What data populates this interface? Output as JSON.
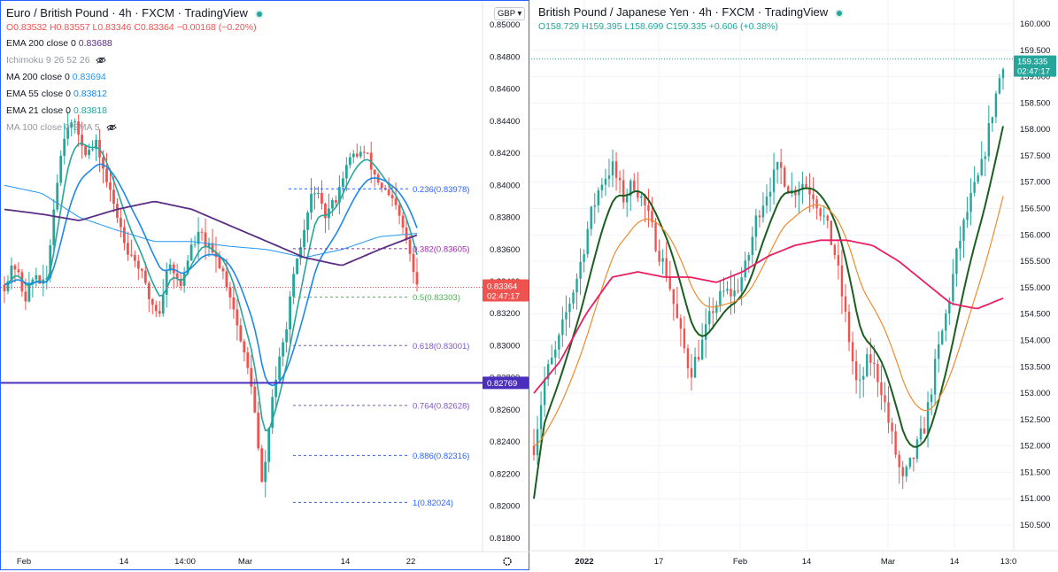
{
  "left": {
    "title": "Euro / British Pound · 4h · FXCM · TradingView",
    "ohlc": {
      "o": "O0.83532",
      "h": "H0.83557",
      "l": "L0.83346",
      "c": "C0.83364",
      "chg": "−0.00168 (−0.20%)"
    },
    "currency": "GBP",
    "indicators": [
      {
        "label": "EMA 200 close 0",
        "value": "0.83688",
        "color": "#5b2c83",
        "value_color": "#5b2c83"
      },
      {
        "label": "Ichimoku 9 26 52 26",
        "value": "",
        "color": "#9598a1",
        "eye": true
      },
      {
        "label": "MA 200 close 0",
        "value": "0.83694",
        "color": "#131722",
        "value_color": "#2196f3"
      },
      {
        "label": "EMA 55 close 0",
        "value": "0.83812",
        "color": "#131722",
        "value_color": "#1e88e5"
      },
      {
        "label": "EMA 21 close 0",
        "value": "0.83818",
        "color": "#131722",
        "value_color": "#26a69a"
      },
      {
        "label": "MA 100 close 0 SMA 5",
        "value": "",
        "color": "#9598a1",
        "eye": true
      }
    ],
    "price_labels": [
      "0.85000",
      "0.84800",
      "0.84600",
      "0.84400",
      "0.84200",
      "0.84000",
      "0.83800",
      "0.83600",
      "0.83400",
      "0.83200",
      "0.83000",
      "0.82800",
      "0.82600",
      "0.82400",
      "0.82200",
      "0.82000",
      "0.81800"
    ],
    "date_labels": [
      "Feb",
      "14",
      "14:00",
      "Mar",
      "14",
      "22"
    ],
    "current_price": "0.83364",
    "countdown": "02:47:17",
    "hline_price": "0.82769",
    "fib_labels": [
      "0.236(0.83978)",
      "0.382(0.83605)",
      "0.5(0.83303)",
      "0.618(0.83001)",
      "0.764(0.82628)",
      "0.886(0.82316)",
      "1(0.82024)"
    ],
    "colors": {
      "up": "#26a69a",
      "down": "#ef5350",
      "ema200": "#5b2c83",
      "ma200": "#2196f3",
      "ema55": "#1e88e5",
      "ema21": "#26a69a",
      "hline": "#4a2fbd"
    }
  },
  "right": {
    "title": "British Pound / Japanese Yen · 4h · FXCM · TradingView",
    "ohlc": {
      "o": "O158.729",
      "h": "H159.395",
      "l": "L158.699",
      "c": "C159.335",
      "chg": "+0.606 (+0.38%)"
    },
    "price_labels": [
      "160.000",
      "159.500",
      "159.000",
      "158.500",
      "158.000",
      "157.500",
      "157.000",
      "156.500",
      "156.000",
      "155.500",
      "155.000",
      "154.500",
      "154.000",
      "153.500",
      "153.000",
      "152.500",
      "152.000",
      "151.500",
      "151.000",
      "150.500"
    ],
    "date_labels": [
      "2022",
      "17",
      "Feb",
      "14",
      "Mar",
      "14",
      "13:0"
    ],
    "current_price": "159.335",
    "countdown": "02:47:17",
    "colors": {
      "up": "#26a69a",
      "down": "#ef5350",
      "dark": "#1b5e20",
      "orange": "#ef8b2c",
      "red": "#e91e63"
    }
  },
  "chart_data": [
    {
      "type": "candlestick",
      "title": "Euro / British Pound · 4h · FXCM",
      "ylim": [
        0.8175,
        0.8505
      ],
      "x_ticks": [
        "Feb",
        "14",
        "14:00",
        "Mar",
        "14",
        "22"
      ],
      "last_close": 0.83364,
      "horizontal_level": 0.82769,
      "fibonacci": [
        {
          "ratio": 0.236,
          "price": 0.83978
        },
        {
          "ratio": 0.382,
          "price": 0.83605
        },
        {
          "ratio": 0.5,
          "price": 0.83303
        },
        {
          "ratio": 0.618,
          "price": 0.83001
        },
        {
          "ratio": 0.764,
          "price": 0.82628
        },
        {
          "ratio": 0.886,
          "price": 0.82316
        },
        {
          "ratio": 1,
          "price": 0.82024
        }
      ],
      "series": [
        {
          "name": "EMA 200 close 0",
          "last": 0.83688
        },
        {
          "name": "MA 200 close 0",
          "last": 0.83694
        },
        {
          "name": "EMA 55 close 0",
          "last": 0.83812
        },
        {
          "name": "EMA 21 close 0",
          "last": 0.83818
        }
      ]
    },
    {
      "type": "candlestick",
      "title": "British Pound / Japanese Yen · 4h · FXCM",
      "ylim": [
        150.1,
        160.2
      ],
      "x_ticks": [
        "2022",
        "17",
        "Feb",
        "14",
        "Mar",
        "14",
        "13:0"
      ],
      "last_close": 159.335
    }
  ]
}
